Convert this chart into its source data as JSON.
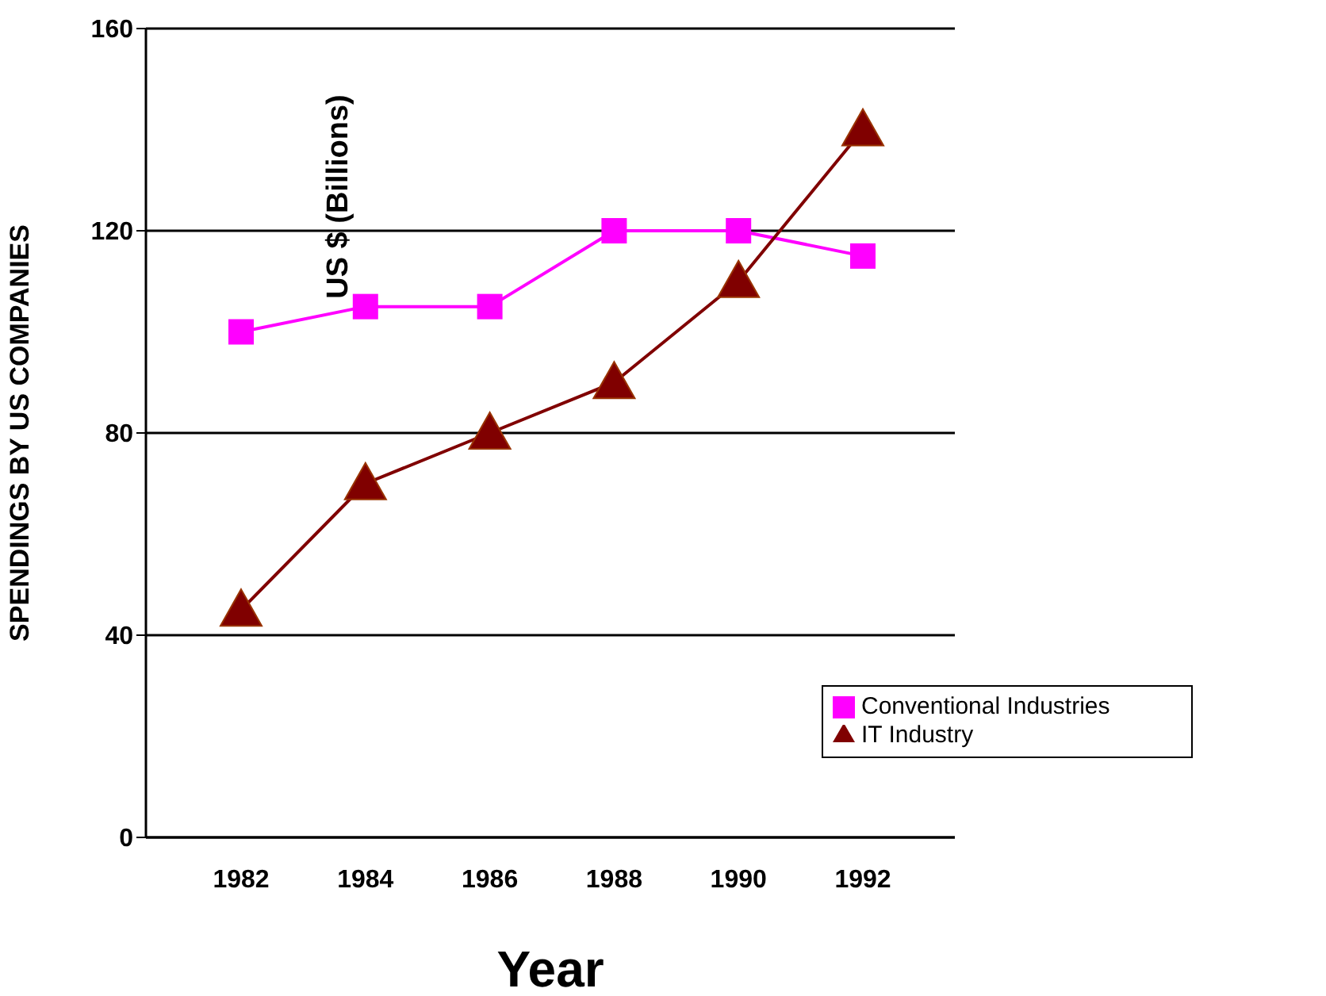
{
  "chart_data": {
    "type": "line",
    "xlabel": "Year",
    "ylabel": "SPENDINGS BY US COMPANIES",
    "annotations": [
      "US $ (Billions)"
    ],
    "categories": [
      "1982",
      "1984",
      "1986",
      "1988",
      "1990",
      "1992"
    ],
    "series": [
      {
        "name": "Conventional Industries",
        "color": "#ff00ff",
        "marker": "square",
        "values": [
          100,
          105,
          105,
          120,
          120,
          115
        ]
      },
      {
        "name": "IT Industry",
        "color": "#800000",
        "marker": "triangle",
        "values": [
          45,
          70,
          80,
          90,
          110,
          140
        ]
      }
    ],
    "ylim": [
      0,
      160
    ],
    "yticks": [
      0,
      40,
      80,
      120,
      160
    ],
    "grid": "y",
    "legend": "bottom right"
  }
}
